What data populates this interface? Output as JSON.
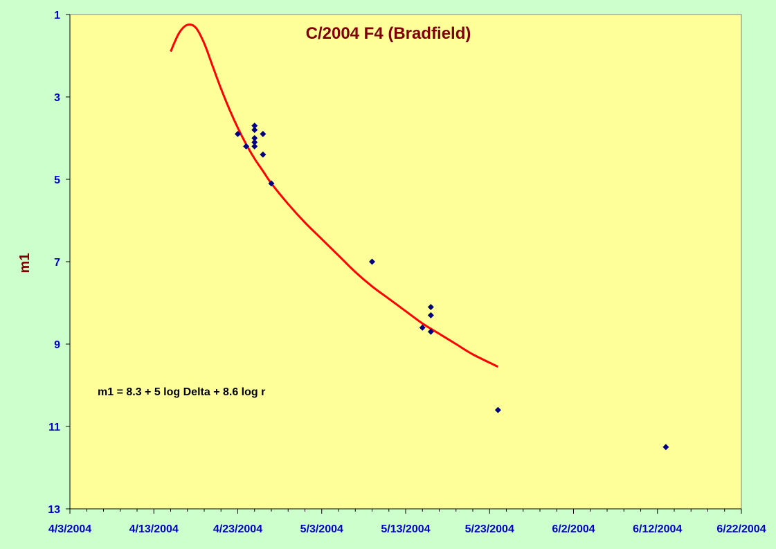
{
  "chart_data": {
    "type": "scatter",
    "title": "C/2004 F4 (Bradfield)",
    "xlabel": "",
    "ylabel": "m1",
    "y_inverted": true,
    "ylim": [
      13,
      1
    ],
    "yticks": [
      1,
      3,
      5,
      7,
      9,
      11,
      13
    ],
    "xlim": [
      "2004-04-03",
      "2004-06-22"
    ],
    "xticks": [
      "2004-04-03",
      "2004-04-13",
      "2004-04-23",
      "2004-05-03",
      "2004-05-13",
      "2004-05-23",
      "2004-06-02",
      "2004-06-12",
      "2004-06-22"
    ],
    "xtick_labels": [
      "4/3/2004",
      "4/13/2004",
      "4/23/2004",
      "5/3/2004",
      "5/13/2004",
      "5/23/2004",
      "6/2/2004",
      "6/12/2004",
      "6/22/2004"
    ],
    "grid": false,
    "annotation": "m1 = 8.3  + 5 log Delta + 8.6 log r",
    "series": [
      {
        "kind": "scatter",
        "color": "#000080",
        "marker": "diamond",
        "points": [
          {
            "x": "2004-04-23",
            "y": 3.9
          },
          {
            "x": "2004-04-24",
            "y": 4.2
          },
          {
            "x": "2004-04-25",
            "y": 3.7
          },
          {
            "x": "2004-04-25",
            "y": 3.8
          },
          {
            "x": "2004-04-25",
            "y": 4.0
          },
          {
            "x": "2004-04-25",
            "y": 4.1
          },
          {
            "x": "2004-04-25",
            "y": 4.2
          },
          {
            "x": "2004-04-26",
            "y": 3.9
          },
          {
            "x": "2004-04-26",
            "y": 4.4
          },
          {
            "x": "2004-04-27",
            "y": 5.1
          },
          {
            "x": "2004-05-09",
            "y": 7.0
          },
          {
            "x": "2004-05-15",
            "y": 8.6
          },
          {
            "x": "2004-05-16",
            "y": 8.1
          },
          {
            "x": "2004-05-16",
            "y": 8.3
          },
          {
            "x": "2004-05-16",
            "y": 8.7
          },
          {
            "x": "2004-05-24",
            "y": 10.6
          },
          {
            "x": "2004-06-13",
            "y": 11.5
          }
        ]
      },
      {
        "kind": "line",
        "color": "#ff0000",
        "points": [
          {
            "x": "2004-04-15",
            "y": 1.9
          },
          {
            "x": "2004-04-16",
            "y": 1.45
          },
          {
            "x": "2004-04-17",
            "y": 1.25
          },
          {
            "x": "2004-04-18",
            "y": 1.32
          },
          {
            "x": "2004-04-19",
            "y": 1.7
          },
          {
            "x": "2004-04-20",
            "y": 2.25
          },
          {
            "x": "2004-04-21",
            "y": 2.8
          },
          {
            "x": "2004-04-22",
            "y": 3.3
          },
          {
            "x": "2004-04-23",
            "y": 3.75
          },
          {
            "x": "2004-04-24",
            "y": 4.15
          },
          {
            "x": "2004-04-25",
            "y": 4.5
          },
          {
            "x": "2004-04-26",
            "y": 4.8
          },
          {
            "x": "2004-04-27",
            "y": 5.1
          },
          {
            "x": "2004-04-29",
            "y": 5.6
          },
          {
            "x": "2004-05-01",
            "y": 6.05
          },
          {
            "x": "2004-05-03",
            "y": 6.45
          },
          {
            "x": "2004-05-05",
            "y": 6.85
          },
          {
            "x": "2004-05-07",
            "y": 7.25
          },
          {
            "x": "2004-05-09",
            "y": 7.6
          },
          {
            "x": "2004-05-11",
            "y": 7.9
          },
          {
            "x": "2004-05-13",
            "y": 8.2
          },
          {
            "x": "2004-05-15",
            "y": 8.5
          },
          {
            "x": "2004-05-17",
            "y": 8.75
          },
          {
            "x": "2004-05-19",
            "y": 9.0
          },
          {
            "x": "2004-05-21",
            "y": 9.25
          },
          {
            "x": "2004-05-24",
            "y": 9.55
          }
        ]
      }
    ]
  },
  "colors": {
    "page_background": "#ccffcc",
    "plot_background": "#ffff99",
    "title": "#800000",
    "ylabel": "#800000",
    "tick_labels": "#0000cc"
  }
}
